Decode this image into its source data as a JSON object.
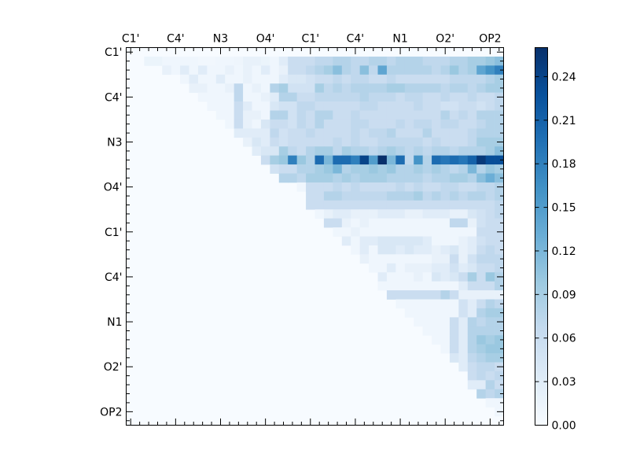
{
  "chart_data": {
    "type": "heatmap",
    "title": "",
    "xlabel": "",
    "ylabel": "",
    "grid": false,
    "matrix_size": 42,
    "x_tick_labels": [
      "C1'",
      "C4'",
      "N3",
      "O4'",
      "C1'",
      "C4'",
      "N1",
      "O2'",
      "OP2"
    ],
    "y_tick_labels": [
      "C1'",
      "C4'",
      "N3",
      "O4'",
      "C1'",
      "C4'",
      "N1",
      "O2'",
      "OP2"
    ],
    "colormap": [
      "#f7fbff",
      "#deebf7",
      "#c6dbef",
      "#9ecae1",
      "#6baed6",
      "#4292c6",
      "#2171b5",
      "#08519c",
      "#08306b"
    ],
    "colorbar": {
      "range": [
        0.0,
        0.26
      ],
      "ticks": [
        "0.00",
        "0.03",
        "0.06",
        "0.09",
        "0.12",
        "0.15",
        "0.18",
        "0.21",
        "0.24"
      ]
    },
    "matrix_layout": "upper-triangular; all cells on or below the diagonal are 0.00",
    "rows": [
      {
        "row": 1,
        "from_col": 2,
        "values": [
          0.015,
          0.015,
          0.01,
          0.01,
          0.01,
          0.01,
          0.008,
          0.008,
          0.01,
          0.01,
          0.012,
          0.02,
          0.02,
          0.015,
          0.01,
          0.03,
          0.06,
          0.06,
          0.06,
          0.07,
          0.07,
          0.08,
          0.08,
          0.07,
          0.07,
          0.08,
          0.08,
          0.07,
          0.08,
          0.08,
          0.08,
          0.07,
          0.07,
          0.07,
          0.08,
          0.08,
          0.09,
          0.09,
          0.1,
          0.11
        ]
      },
      {
        "row": 2,
        "from_col": 4,
        "values": [
          0.02,
          0.01,
          0.03,
          0.01,
          0.03,
          0.01,
          0.01,
          0.02,
          0.01,
          0.02,
          0.01,
          0.03,
          0.01,
          0.02,
          0.06,
          0.06,
          0.07,
          0.08,
          0.09,
          0.11,
          0.08,
          0.07,
          0.11,
          0.07,
          0.14,
          0.08,
          0.08,
          0.08,
          0.08,
          0.08,
          0.07,
          0.08,
          0.1,
          0.08,
          0.09,
          0.14,
          0.16,
          0.18
        ]
      },
      {
        "row": 3,
        "from_col": 6,
        "values": [
          0.01,
          0.03,
          0.01,
          0.01,
          0.03,
          0.01,
          0.01,
          0.02,
          0.01,
          0.01,
          0.01,
          0.03,
          0.04,
          0.04,
          0.05,
          0.06,
          0.06,
          0.07,
          0.06,
          0.07,
          0.07,
          0.06,
          0.06,
          0.07,
          0.06,
          0.06,
          0.06,
          0.06,
          0.06,
          0.06,
          0.07,
          0.07,
          0.07,
          0.07,
          0.08,
          0.09
        ]
      },
      {
        "row": 4,
        "from_col": 7,
        "values": [
          0.02,
          0.02,
          0.01,
          0.01,
          0.02,
          0.07,
          0.01,
          0.02,
          0.01,
          0.08,
          0.09,
          0.05,
          0.05,
          0.05,
          0.09,
          0.07,
          0.08,
          0.07,
          0.08,
          0.08,
          0.08,
          0.08,
          0.09,
          0.09,
          0.08,
          0.08,
          0.08,
          0.08,
          0.07,
          0.08,
          0.08,
          0.07,
          0.08,
          0.09,
          0.09
        ]
      },
      {
        "row": 5,
        "from_col": 8,
        "values": [
          0.01,
          0.01,
          0.01,
          0.01,
          0.07,
          0.01,
          0.01,
          0.02,
          0.03,
          0.08,
          0.08,
          0.06,
          0.06,
          0.07,
          0.07,
          0.07,
          0.07,
          0.07,
          0.08,
          0.07,
          0.07,
          0.07,
          0.06,
          0.07,
          0.07,
          0.06,
          0.06,
          0.07,
          0.06,
          0.06,
          0.07,
          0.06,
          0.06,
          0.07
        ]
      },
      {
        "row": 6,
        "from_col": 9,
        "values": [
          0.01,
          0.01,
          0.01,
          0.06,
          0.03,
          0.01,
          0.01,
          0.04,
          0.05,
          0.05,
          0.07,
          0.07,
          0.06,
          0.06,
          0.06,
          0.06,
          0.06,
          0.07,
          0.07,
          0.06,
          0.06,
          0.06,
          0.06,
          0.07,
          0.06,
          0.06,
          0.05,
          0.05,
          0.06,
          0.06,
          0.05,
          0.06,
          0.07
        ]
      },
      {
        "row": 7,
        "from_col": 10,
        "values": [
          0.01,
          0.01,
          0.06,
          0.02,
          0.02,
          0.01,
          0.08,
          0.08,
          0.05,
          0.07,
          0.06,
          0.08,
          0.08,
          0.06,
          0.06,
          0.07,
          0.06,
          0.06,
          0.06,
          0.06,
          0.06,
          0.06,
          0.06,
          0.06,
          0.06,
          0.08,
          0.06,
          0.07,
          0.06,
          0.08,
          0.08,
          0.08
        ]
      },
      {
        "row": 8,
        "from_col": 11,
        "values": [
          0.01,
          0.06,
          0.02,
          0.01,
          0.04,
          0.06,
          0.06,
          0.05,
          0.07,
          0.06,
          0.08,
          0.06,
          0.06,
          0.06,
          0.07,
          0.07,
          0.06,
          0.06,
          0.06,
          0.07,
          0.06,
          0.07,
          0.07,
          0.06,
          0.07,
          0.07,
          0.06,
          0.06,
          0.07,
          0.08,
          0.08
        ]
      },
      {
        "row": 9,
        "from_col": 12,
        "values": [
          0.03,
          0.03,
          0.03,
          0.03,
          0.07,
          0.05,
          0.06,
          0.06,
          0.07,
          0.06,
          0.06,
          0.06,
          0.06,
          0.07,
          0.06,
          0.07,
          0.07,
          0.08,
          0.06,
          0.06,
          0.06,
          0.08,
          0.06,
          0.06,
          0.06,
          0.06,
          0.07,
          0.08,
          0.08,
          0.08
        ]
      },
      {
        "row": 10,
        "from_col": 13,
        "values": [
          0.02,
          0.04,
          0.03,
          0.06,
          0.05,
          0.06,
          0.06,
          0.06,
          0.06,
          0.06,
          0.07,
          0.06,
          0.07,
          0.06,
          0.06,
          0.07,
          0.07,
          0.07,
          0.07,
          0.07,
          0.06,
          0.07,
          0.06,
          0.06,
          0.06,
          0.07,
          0.09,
          0.09,
          0.09
        ]
      },
      {
        "row": 11,
        "from_col": 14,
        "values": [
          0.03,
          0.04,
          0.04,
          0.09,
          0.07,
          0.06,
          0.08,
          0.09,
          0.09,
          0.07,
          0.09,
          0.08,
          0.08,
          0.07,
          0.08,
          0.09,
          0.08,
          0.07,
          0.08,
          0.07,
          0.08,
          0.08,
          0.07,
          0.08,
          0.08,
          0.08,
          0.09,
          0.11
        ]
      },
      {
        "row": 12,
        "from_col": 15,
        "values": [
          0.06,
          0.09,
          0.1,
          0.18,
          0.1,
          0.08,
          0.2,
          0.12,
          0.2,
          0.2,
          0.18,
          0.24,
          0.15,
          0.26,
          0.12,
          0.2,
          0.07,
          0.16,
          0.08,
          0.2,
          0.19,
          0.2,
          0.19,
          0.21,
          0.25,
          0.23,
          0.23
        ]
      },
      {
        "row": 13,
        "from_col": 16,
        "values": [
          0.05,
          0.06,
          0.06,
          0.08,
          0.08,
          0.09,
          0.1,
          0.12,
          0.08,
          0.09,
          0.09,
          0.1,
          0.09,
          0.1,
          0.08,
          0.08,
          0.09,
          0.08,
          0.09,
          0.08,
          0.07,
          0.08,
          0.12,
          0.08,
          0.1,
          0.09
        ]
      },
      {
        "row": 14,
        "from_col": 17,
        "values": [
          0.08,
          0.08,
          0.07,
          0.09,
          0.09,
          0.09,
          0.08,
          0.09,
          0.08,
          0.09,
          0.09,
          0.09,
          0.08,
          0.08,
          0.08,
          0.08,
          0.07,
          0.08,
          0.08,
          0.09,
          0.09,
          0.08,
          0.11,
          0.13,
          0.11
        ]
      },
      {
        "row": 15,
        "from_col": 19,
        "values": [
          0.01,
          0.06,
          0.06,
          0.06,
          0.07,
          0.06,
          0.07,
          0.06,
          0.06,
          0.06,
          0.06,
          0.07,
          0.06,
          0.07,
          0.06,
          0.06,
          0.07,
          0.07,
          0.06,
          0.06,
          0.07,
          0.07,
          0.08
        ]
      },
      {
        "row": 16,
        "from_col": 20,
        "values": [
          0.06,
          0.06,
          0.08,
          0.08,
          0.07,
          0.07,
          0.07,
          0.07,
          0.07,
          0.08,
          0.08,
          0.08,
          0.09,
          0.07,
          0.08,
          0.07,
          0.08,
          0.07,
          0.08,
          0.08,
          0.07,
          0.08
        ]
      },
      {
        "row": 17,
        "from_col": 20,
        "values": [
          0.06,
          0.06,
          0.06,
          0.06,
          0.06,
          0.06,
          0.06,
          0.06,
          0.06,
          0.06,
          0.06,
          0.06,
          0.06,
          0.06,
          0.06,
          0.06,
          0.06,
          0.06,
          0.06,
          0.06,
          0.06,
          0.07
        ]
      },
      {
        "row": 18,
        "from_col": 21,
        "values": [
          0.01,
          0.02,
          0.03,
          0.03,
          0.02,
          0.02,
          0.02,
          0.03,
          0.03,
          0.03,
          0.02,
          0.02,
          0.03,
          0.03,
          0.03,
          0.02,
          0.02,
          0.04,
          0.05,
          0.06,
          0.07
        ]
      },
      {
        "row": 19,
        "from_col": 22,
        "values": [
          0.06,
          0.06,
          0.02,
          0.01,
          0.02,
          0.01,
          0.01,
          0.01,
          0.01,
          0.01,
          0.01,
          0.01,
          0.01,
          0.01,
          0.07,
          0.07,
          0.02,
          0.05,
          0.06,
          0.06
        ]
      },
      {
        "row": 20,
        "from_col": 23,
        "values": [
          0.01,
          0.01,
          0.02,
          0.01,
          0.01,
          0.01,
          0.01,
          0.01,
          0.01,
          0.01,
          0.01,
          0.01,
          0.01,
          0.01,
          0.01,
          0.01,
          0.06,
          0.06,
          0.06
        ]
      },
      {
        "row": 21,
        "from_col": 24,
        "values": [
          0.03,
          0.01,
          0.03,
          0.03,
          0.04,
          0.04,
          0.04,
          0.04,
          0.04,
          0.03,
          0.01,
          0.01,
          0.01,
          0.02,
          0.03,
          0.05,
          0.06,
          0.06
        ]
      },
      {
        "row": 22,
        "from_col": 25,
        "values": [
          0.01,
          0.03,
          0.01,
          0.04,
          0.04,
          0.03,
          0.04,
          0.03,
          0.03,
          0.02,
          0.03,
          0.04,
          0.02,
          0.03,
          0.06,
          0.07,
          0.06
        ]
      },
      {
        "row": 23,
        "from_col": 26,
        "values": [
          0.02,
          0.01,
          0.01,
          0.01,
          0.01,
          0.01,
          0.01,
          0.01,
          0.02,
          0.02,
          0.06,
          0.02,
          0.05,
          0.07,
          0.07,
          0.07
        ]
      },
      {
        "row": 24,
        "from_col": 27,
        "values": [
          0.01,
          0.01,
          0.03,
          0.01,
          0.02,
          0.02,
          0.02,
          0.03,
          0.03,
          0.05,
          0.03,
          0.04,
          0.06,
          0.06,
          0.07
        ]
      },
      {
        "row": 25,
        "from_col": 28,
        "values": [
          0.03,
          0.01,
          0.01,
          0.01,
          0.02,
          0.01,
          0.04,
          0.03,
          0.04,
          0.06,
          0.09,
          0.06,
          0.1,
          0.08
        ]
      },
      {
        "row": 26,
        "from_col": 28,
        "values": [
          0.01,
          0.01,
          0.01,
          0.01,
          0.01,
          0.01,
          0.01,
          0.01,
          0.01,
          0.03,
          0.06,
          0.06,
          0.06,
          0.08
        ]
      },
      {
        "row": 27,
        "from_col": 29,
        "values": [
          0.06,
          0.06,
          0.06,
          0.06,
          0.06,
          0.06,
          0.08,
          0.06,
          0.02,
          0.02,
          0.02,
          0.02,
          0.02
        ]
      },
      {
        "row": 28,
        "from_col": 30,
        "values": [
          0.01,
          0.01,
          0.01,
          0.01,
          0.01,
          0.01,
          0.01,
          0.05,
          0.03,
          0.06,
          0.08,
          0.07
        ]
      },
      {
        "row": 29,
        "from_col": 31,
        "values": [
          0.01,
          0.01,
          0.01,
          0.01,
          0.01,
          0.01,
          0.05,
          0.03,
          0.08,
          0.09,
          0.09
        ]
      },
      {
        "row": 30,
        "from_col": 32,
        "values": [
          0.01,
          0.01,
          0.01,
          0.01,
          0.06,
          0.03,
          0.08,
          0.07,
          0.08,
          0.08
        ]
      },
      {
        "row": 31,
        "from_col": 33,
        "values": [
          0.01,
          0.01,
          0.01,
          0.06,
          0.03,
          0.08,
          0.08,
          0.08,
          0.08
        ]
      },
      {
        "row": 32,
        "from_col": 34,
        "values": [
          0.01,
          0.01,
          0.06,
          0.03,
          0.08,
          0.1,
          0.09,
          0.1
        ]
      },
      {
        "row": 33,
        "from_col": 35,
        "values": [
          0.01,
          0.06,
          0.03,
          0.08,
          0.09,
          0.1,
          0.1
        ]
      },
      {
        "row": 34,
        "from_col": 36,
        "values": [
          0.04,
          0.03,
          0.07,
          0.08,
          0.09,
          0.09
        ]
      },
      {
        "row": 35,
        "from_col": 37,
        "values": [
          0.03,
          0.06,
          0.07,
          0.07,
          0.06
        ]
      },
      {
        "row": 36,
        "from_col": 38,
        "values": [
          0.06,
          0.07,
          0.06,
          0.07
        ]
      },
      {
        "row": 37,
        "from_col": 38,
        "values": [
          0.03,
          0.03,
          0.08,
          0.06
        ]
      },
      {
        "row": 38,
        "from_col": 39,
        "values": [
          0.08,
          0.07,
          0.08
        ]
      },
      {
        "row": 39,
        "from_col": 40,
        "values": [
          0.01,
          0.01
        ]
      },
      {
        "row": 40,
        "from_col": 41,
        "values": [
          0.01
        ]
      }
    ]
  }
}
